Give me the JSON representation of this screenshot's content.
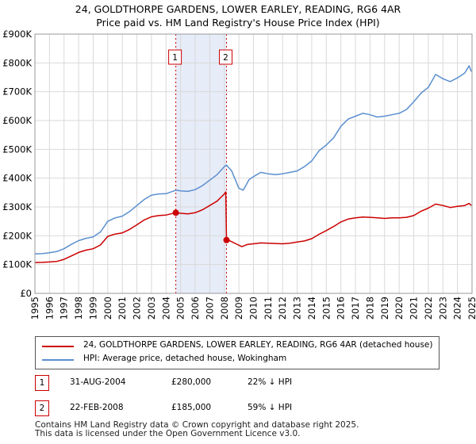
{
  "header": {
    "title": "24, GOLDTHORPE GARDENS, LOWER EARLEY, READING, RG6 4AR",
    "subtitle": "Price paid vs. HM Land Registry's House Price Index (HPI)"
  },
  "chart_data": {
    "type": "line",
    "xlim": [
      1995,
      2025
    ],
    "ylim": [
      0,
      900000
    ],
    "x_ticks": [
      "1995",
      "1996",
      "1997",
      "1998",
      "1999",
      "2000",
      "2001",
      "2002",
      "2003",
      "2004",
      "2005",
      "2006",
      "2007",
      "2008",
      "2009",
      "2010",
      "2011",
      "2012",
      "2013",
      "2014",
      "2015",
      "2016",
      "2017",
      "2018",
      "2019",
      "2020",
      "2021",
      "2022",
      "2023",
      "2024",
      "2025"
    ],
    "y_ticks": [
      {
        "value": 0,
        "label": "£0"
      },
      {
        "value": 100000,
        "label": "£100K"
      },
      {
        "value": 200000,
        "label": "£200K"
      },
      {
        "value": 300000,
        "label": "£300K"
      },
      {
        "value": 400000,
        "label": "£400K"
      },
      {
        "value": 500000,
        "label": "£500K"
      },
      {
        "value": 600000,
        "label": "£600K"
      },
      {
        "value": 700000,
        "label": "£700K"
      },
      {
        "value": 800000,
        "label": "£800K"
      },
      {
        "value": 900000,
        "label": "£900K"
      }
    ],
    "shaded_period": [
      2004.67,
      2008.15
    ],
    "series": [
      {
        "name": "24, GOLDTHORPE GARDENS, LOWER EARLEY, READING, RG6 4AR (detached house)",
        "color": "#cc0000",
        "points": [
          [
            1995.0,
            107000
          ],
          [
            1995.5,
            107500
          ],
          [
            1996.0,
            109000
          ],
          [
            1996.5,
            111000
          ],
          [
            1997.0,
            118000
          ],
          [
            1997.5,
            130000
          ],
          [
            1998.0,
            142000
          ],
          [
            1998.5,
            150000
          ],
          [
            1999.0,
            155000
          ],
          [
            1999.5,
            168000
          ],
          [
            2000.0,
            198000
          ],
          [
            2000.5,
            206000
          ],
          [
            2001.0,
            210000
          ],
          [
            2001.5,
            222000
          ],
          [
            2002.0,
            238000
          ],
          [
            2002.5,
            255000
          ],
          [
            2003.0,
            266000
          ],
          [
            2003.5,
            270000
          ],
          [
            2004.0,
            272000
          ],
          [
            2004.67,
            280000
          ],
          [
            2005.0,
            278000
          ],
          [
            2005.5,
            276000
          ],
          [
            2006.0,
            280000
          ],
          [
            2006.5,
            290000
          ],
          [
            2007.0,
            305000
          ],
          [
            2007.5,
            320000
          ],
          [
            2008.0,
            345000
          ],
          [
            2008.1,
            352000
          ],
          [
            2008.15,
            185000
          ],
          [
            2008.4,
            182000
          ],
          [
            2008.8,
            172000
          ],
          [
            2009.2,
            162000
          ],
          [
            2009.6,
            170000
          ],
          [
            2010.0,
            172000
          ],
          [
            2010.5,
            175000
          ],
          [
            2011.0,
            174000
          ],
          [
            2011.5,
            173000
          ],
          [
            2012.0,
            172000
          ],
          [
            2012.5,
            174000
          ],
          [
            2013.0,
            178000
          ],
          [
            2013.5,
            182000
          ],
          [
            2014.0,
            190000
          ],
          [
            2014.5,
            205000
          ],
          [
            2015.0,
            218000
          ],
          [
            2015.5,
            232000
          ],
          [
            2016.0,
            248000
          ],
          [
            2016.5,
            258000
          ],
          [
            2017.0,
            262000
          ],
          [
            2017.5,
            265000
          ],
          [
            2018.0,
            264000
          ],
          [
            2018.5,
            262000
          ],
          [
            2019.0,
            260000
          ],
          [
            2019.5,
            262000
          ],
          [
            2020.0,
            262000
          ],
          [
            2020.5,
            264000
          ],
          [
            2021.0,
            270000
          ],
          [
            2021.5,
            285000
          ],
          [
            2022.0,
            296000
          ],
          [
            2022.5,
            310000
          ],
          [
            2023.0,
            305000
          ],
          [
            2023.5,
            298000
          ],
          [
            2024.0,
            302000
          ],
          [
            2024.5,
            305000
          ],
          [
            2024.8,
            312000
          ],
          [
            2024.95,
            305000
          ]
        ]
      },
      {
        "name": "HPI: Average price, detached house, Wokingham",
        "color": "#5b8fcf",
        "points": [
          [
            1995.0,
            137000
          ],
          [
            1995.5,
            138000
          ],
          [
            1996.0,
            141000
          ],
          [
            1996.5,
            145000
          ],
          [
            1997.0,
            155000
          ],
          [
            1997.5,
            170000
          ],
          [
            1998.0,
            183000
          ],
          [
            1998.5,
            191000
          ],
          [
            1999.0,
            196000
          ],
          [
            1999.5,
            213000
          ],
          [
            2000.0,
            250000
          ],
          [
            2000.5,
            262000
          ],
          [
            2001.0,
            268000
          ],
          [
            2001.5,
            284000
          ],
          [
            2002.0,
            305000
          ],
          [
            2002.5,
            326000
          ],
          [
            2003.0,
            341000
          ],
          [
            2003.5,
            345000
          ],
          [
            2004.0,
            346000
          ],
          [
            2004.67,
            358000
          ],
          [
            2005.0,
            356000
          ],
          [
            2005.5,
            354000
          ],
          [
            2006.0,
            360000
          ],
          [
            2006.5,
            374000
          ],
          [
            2007.0,
            393000
          ],
          [
            2007.5,
            412000
          ],
          [
            2008.0,
            440000
          ],
          [
            2008.15,
            445000
          ],
          [
            2008.5,
            425000
          ],
          [
            2009.0,
            365000
          ],
          [
            2009.3,
            358000
          ],
          [
            2009.7,
            395000
          ],
          [
            2010.0,
            405000
          ],
          [
            2010.5,
            420000
          ],
          [
            2011.0,
            415000
          ],
          [
            2011.5,
            412000
          ],
          [
            2012.0,
            415000
          ],
          [
            2012.5,
            420000
          ],
          [
            2013.0,
            425000
          ],
          [
            2013.5,
            440000
          ],
          [
            2014.0,
            460000
          ],
          [
            2014.5,
            495000
          ],
          [
            2015.0,
            515000
          ],
          [
            2015.5,
            540000
          ],
          [
            2016.0,
            580000
          ],
          [
            2016.5,
            605000
          ],
          [
            2017.0,
            615000
          ],
          [
            2017.5,
            625000
          ],
          [
            2018.0,
            620000
          ],
          [
            2018.5,
            612000
          ],
          [
            2019.0,
            615000
          ],
          [
            2019.5,
            620000
          ],
          [
            2020.0,
            625000
          ],
          [
            2020.5,
            638000
          ],
          [
            2021.0,
            665000
          ],
          [
            2021.5,
            695000
          ],
          [
            2022.0,
            715000
          ],
          [
            2022.5,
            760000
          ],
          [
            2023.0,
            745000
          ],
          [
            2023.5,
            735000
          ],
          [
            2024.0,
            748000
          ],
          [
            2024.5,
            765000
          ],
          [
            2024.8,
            790000
          ],
          [
            2024.95,
            770000
          ]
        ]
      }
    ],
    "markers": [
      {
        "id": "1",
        "x": 2004.67,
        "y": 280000
      },
      {
        "id": "2",
        "x": 2008.15,
        "y": 185000
      }
    ]
  },
  "legend": {
    "items": [
      {
        "label": "24, GOLDTHORPE GARDENS, LOWER EARLEY, READING, RG6 4AR (detached house)",
        "color": "#cc0000"
      },
      {
        "label": "HPI: Average price, detached house, Wokingham",
        "color": "#5b8fcf"
      }
    ]
  },
  "transactions": [
    {
      "id": "1",
      "date": "31-AUG-2004",
      "price": "£280,000",
      "hpi": "22% ↓ HPI"
    },
    {
      "id": "2",
      "date": "22-FEB-2008",
      "price": "£185,000",
      "hpi": "59% ↓ HPI"
    }
  ],
  "footer": {
    "line1": "Contains HM Land Registry data © Crown copyright and database right 2025.",
    "line2": "This data is licensed under the Open Government Licence v3.0."
  }
}
